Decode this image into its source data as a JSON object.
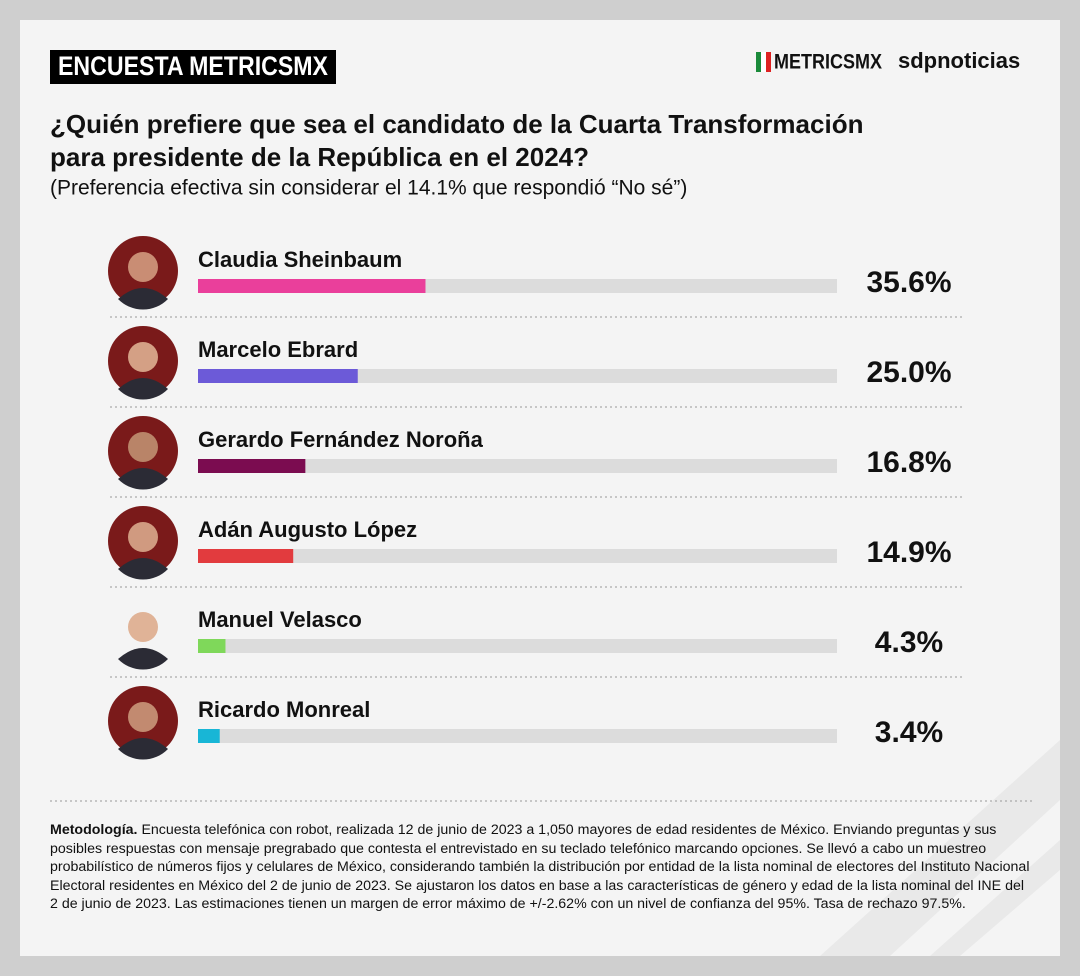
{
  "header": {
    "badge": "ENCUESTA METRICSMX",
    "logo_metrics": "METRICSMX",
    "logo_sdp": "sdpnoticias"
  },
  "chart_data": {
    "type": "bar",
    "orientation": "horizontal",
    "title": "¿Quién prefiere que sea el candidato de la Cuarta Transformación para presidente de la República en el 2024?",
    "subtitle": "(Preferencia efectiva sin considerar el 14.1% que respondió “No sé”)",
    "categories": [
      "Claudia Sheinbaum",
      "Marcelo Ebrard",
      "Gerardo Fernández Noroña",
      "Adán Augusto López",
      "Manuel Velasco",
      "Ricardo Monreal"
    ],
    "values": [
      35.6,
      25.0,
      16.8,
      14.9,
      4.3,
      3.4
    ],
    "value_labels": [
      "35.6%",
      "25.0%",
      "16.8%",
      "14.9%",
      "4.3%",
      "3.4%"
    ],
    "colors": [
      "#ea3f9b",
      "#6c5ad8",
      "#7b0c50",
      "#e23b3e",
      "#7fd85a",
      "#18b6d6"
    ],
    "xlim": [
      0,
      100
    ]
  },
  "footer": {
    "label": "Metodología.",
    "text": "Encuesta telefónica con robot, realizada 12 de junio de 2023 a 1,050 mayores de edad residentes de México. Enviando preguntas y sus posibles respuestas con mensaje pregrabado que contesta el entrevistado en su teclado telefónico marcando opciones. Se llevó a cabo un muestreo probabilístico de números fijos y celulares de México, considerando también la distribución por entidad de la lista nominal de electores del Instituto Nacional Electoral residentes en México del 2 de junio de 2023. Se ajustaron los datos en base a las características de género y edad de la lista nominal del INE del 2 de junio de 2023. Las estimaciones tienen un margen de error máximo de +/-2.62% con un nivel de confianza del 95%. Tasa de rechazo 97.5%."
  }
}
